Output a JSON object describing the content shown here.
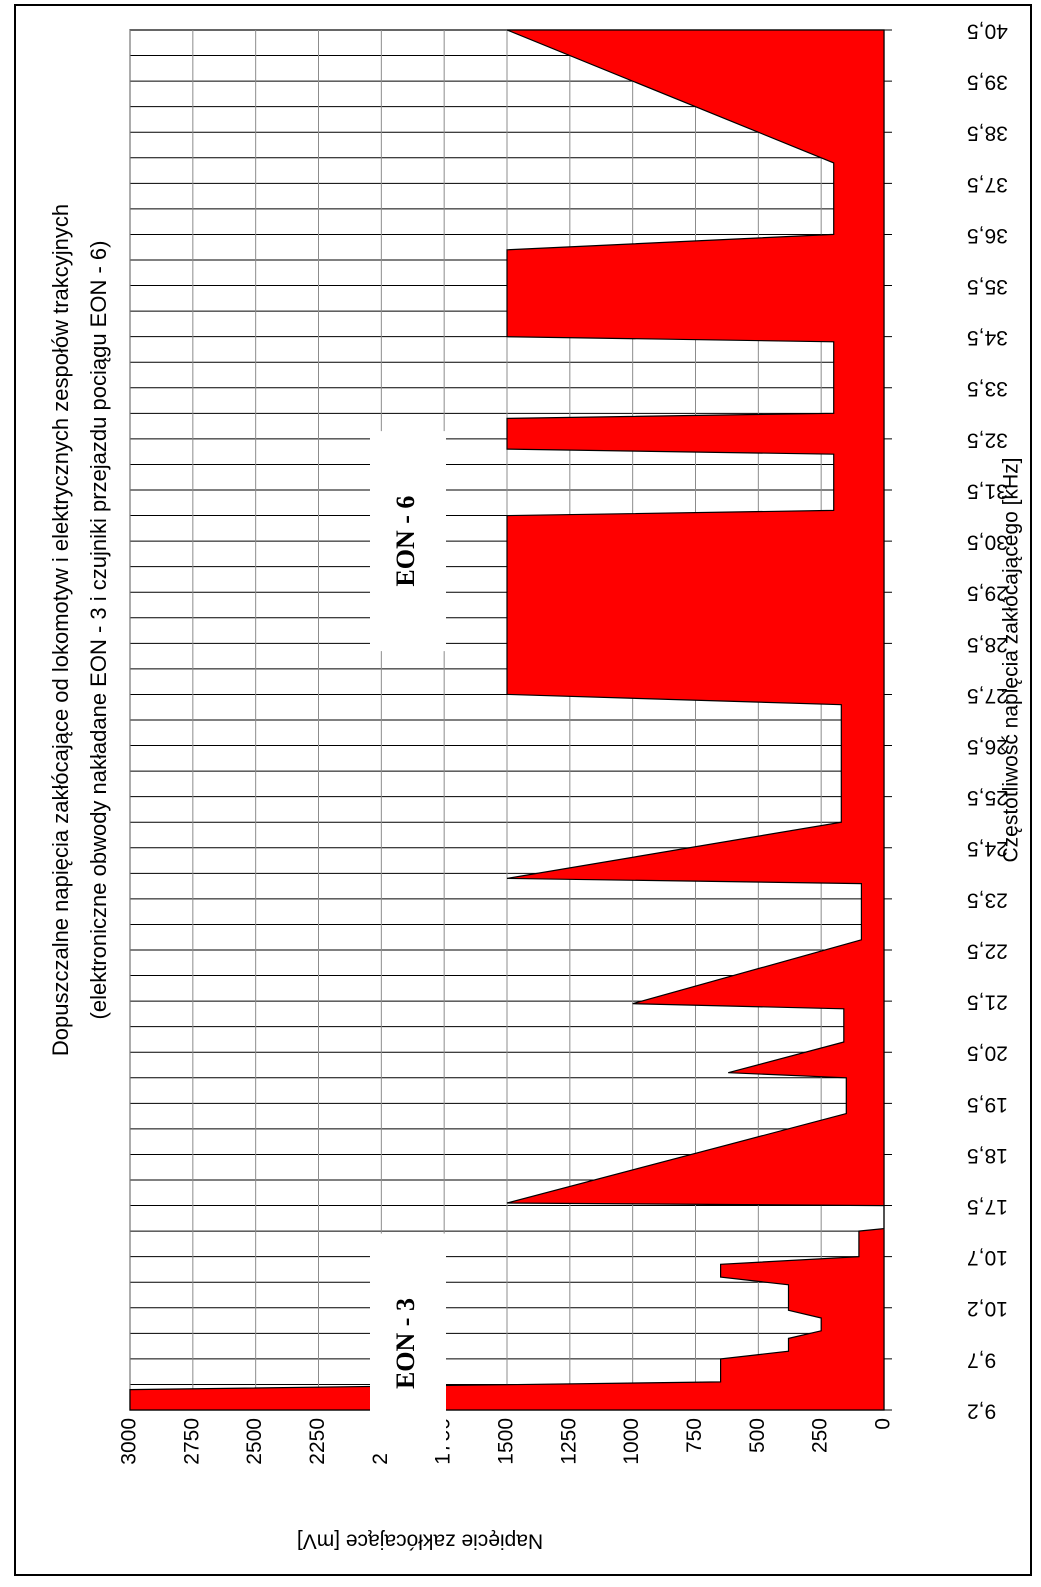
{
  "chart_data": {
    "type": "area",
    "title": "Dopuszczalne napięcia zakłócające od lokomotyw i elektrycznych zespołów trakcyjnych",
    "subtitle": "(elektroniczne obwody nakładane EON - 3 i czujniki przejazdu pociągu EON - 6)",
    "xlabel": "Częstotliwość napięcia zakłócającego [kHz]",
    "ylabel": "Napięcie zakłócające [mV]",
    "ylim": [
      0,
      3000
    ],
    "yticks": [
      0,
      250,
      500,
      750,
      1000,
      1250,
      1500,
      1750,
      2000,
      2250,
      2500,
      2750,
      3000
    ],
    "xtick_labels": [
      "9,2",
      "9,7",
      "10,2",
      "10,7",
      "17,5",
      "18,5",
      "19,5",
      "20,5",
      "21,5",
      "22,5",
      "23,5",
      "24,5",
      "25,5",
      "26,5",
      "27,5",
      "28,5",
      "29,5",
      "30,5",
      "31,5",
      "32,5",
      "33,5",
      "34,5",
      "35,5",
      "36,5",
      "37,5",
      "38,5",
      "39,5",
      "40,5"
    ],
    "grid": true,
    "orientation": "rotated 90° clockwise (frequency axis vertical, voltage axis horizontal)",
    "series": [
      {
        "color": "#ff0000",
        "x_index": [
          0,
          0.4,
          0.55,
          1.0,
          1.15,
          1.4,
          1.55,
          1.8,
          1.95,
          2.45,
          2.6,
          2.85,
          3.0,
          3.5,
          3.55,
          4.0,
          4.05,
          5.8,
          5.85,
          6.5,
          6.6,
          7.2,
          7.3,
          7.85,
          7.95,
          9.2,
          9.3,
          10.3,
          10.4,
          11.5,
          11.6,
          13.8,
          14.0,
          16.4,
          16.5,
          17.5,
          17.6,
          18.7,
          18.8,
          19.4,
          19.5,
          20.9,
          21.0,
          22.7,
          23.0,
          24.0,
          24.4,
          27.0
        ],
        "voltage_mV": [
          3000,
          3000,
          650,
          650,
          380,
          380,
          250,
          250,
          380,
          380,
          650,
          650,
          100,
          100,
          0,
          0,
          1500,
          150,
          150,
          150,
          620,
          160,
          160,
          160,
          1000,
          90,
          90,
          90,
          1500,
          170,
          170,
          170,
          1500,
          1500,
          1500,
          1500,
          200,
          200,
          1500,
          1500,
          200,
          200,
          1500,
          1500,
          200,
          200,
          200,
          1500
        ]
      }
    ],
    "annotations": [
      "EON - 3",
      "EON - 6"
    ]
  }
}
